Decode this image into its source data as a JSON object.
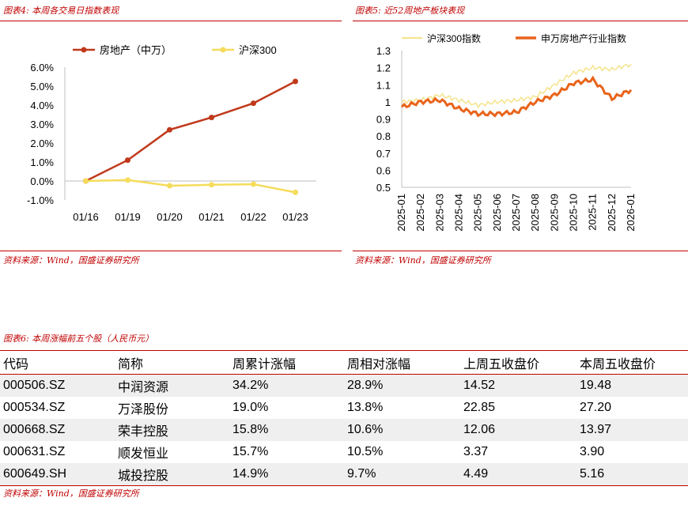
{
  "fig4": {
    "title": "图表4: 本周各交易日指数表现",
    "source": "资料来源：Wind，国盛证券研究所",
    "chart_data": {
      "type": "line",
      "categories": [
        "01/16",
        "01/19",
        "01/20",
        "01/21",
        "01/22",
        "01/23"
      ],
      "series": [
        {
          "name": "房地产（中万）",
          "color": "#c0391b",
          "values": [
            0.0,
            1.1,
            2.7,
            3.35,
            4.1,
            5.25
          ]
        },
        {
          "name": "沪深300",
          "color": "#f5dc5a",
          "values": [
            0.0,
            0.05,
            -0.25,
            -0.2,
            -0.17,
            -0.6
          ]
        }
      ],
      "yticks": [
        "6.0%",
        "5.0%",
        "4.0%",
        "3.0%",
        "2.0%",
        "1.0%",
        "0.0%",
        "-1.0%"
      ],
      "ylim": [
        -1.0,
        6.0
      ],
      "legend": "top",
      "grid": false
    }
  },
  "fig5": {
    "title": "图表5: 近52周地产板块表现",
    "source": "资料来源：Wind，国盛证券研究所",
    "chart_data": {
      "type": "line",
      "x": [
        "2025-01",
        "2025-02",
        "2025-03",
        "2025-04",
        "2025-05",
        "2025-06",
        "2025-07",
        "2025-08",
        "2025-09",
        "2025-10",
        "2025-11",
        "2025-12",
        "2026-01"
      ],
      "series": [
        {
          "name": "沪深300指数",
          "color": "#f5e38a",
          "values": [
            1.0,
            1.01,
            1.04,
            1.01,
            0.98,
            1.0,
            1.01,
            1.03,
            1.1,
            1.17,
            1.2,
            1.19,
            1.22
          ]
        },
        {
          "name": "申万房地产行业指数",
          "color": "#e8641b",
          "values": [
            0.97,
            1.0,
            1.01,
            0.96,
            0.93,
            0.93,
            0.94,
            1.0,
            1.04,
            1.11,
            1.13,
            1.02,
            1.07
          ]
        }
      ],
      "yticks": [
        "1.3",
        "1.2",
        "1.1",
        "1",
        "0.9",
        "0.8",
        "0.7",
        "0.6",
        "0.5"
      ],
      "ylim": [
        0.5,
        1.3
      ],
      "legend": "top",
      "grid": false
    }
  },
  "fig6": {
    "title": "图表6: 本周涨幅前五个股（人民币元）",
    "source": "资料来源：Wind，国盛证券研究所",
    "chart_data": {
      "type": "table",
      "columns": [
        "代码",
        "简称",
        "周累计涨幅",
        "周相对涨幅",
        "上周五收盘价",
        "本周五收盘价"
      ],
      "rows": [
        [
          "000506.SZ",
          "中润资源",
          "34.2%",
          "28.9%",
          "14.52",
          "19.48"
        ],
        [
          "000534.SZ",
          "万泽股份",
          "19.0%",
          "13.8%",
          "22.85",
          "27.20"
        ],
        [
          "000668.SZ",
          "荣丰控股",
          "15.8%",
          "10.6%",
          "12.06",
          "13.97"
        ],
        [
          "000631.SZ",
          "顺发恒业",
          "15.7%",
          "10.5%",
          "3.37",
          "3.90"
        ],
        [
          "600649.SH",
          "城投控股",
          "14.9%",
          "9.7%",
          "4.49",
          "5.16"
        ]
      ]
    }
  }
}
